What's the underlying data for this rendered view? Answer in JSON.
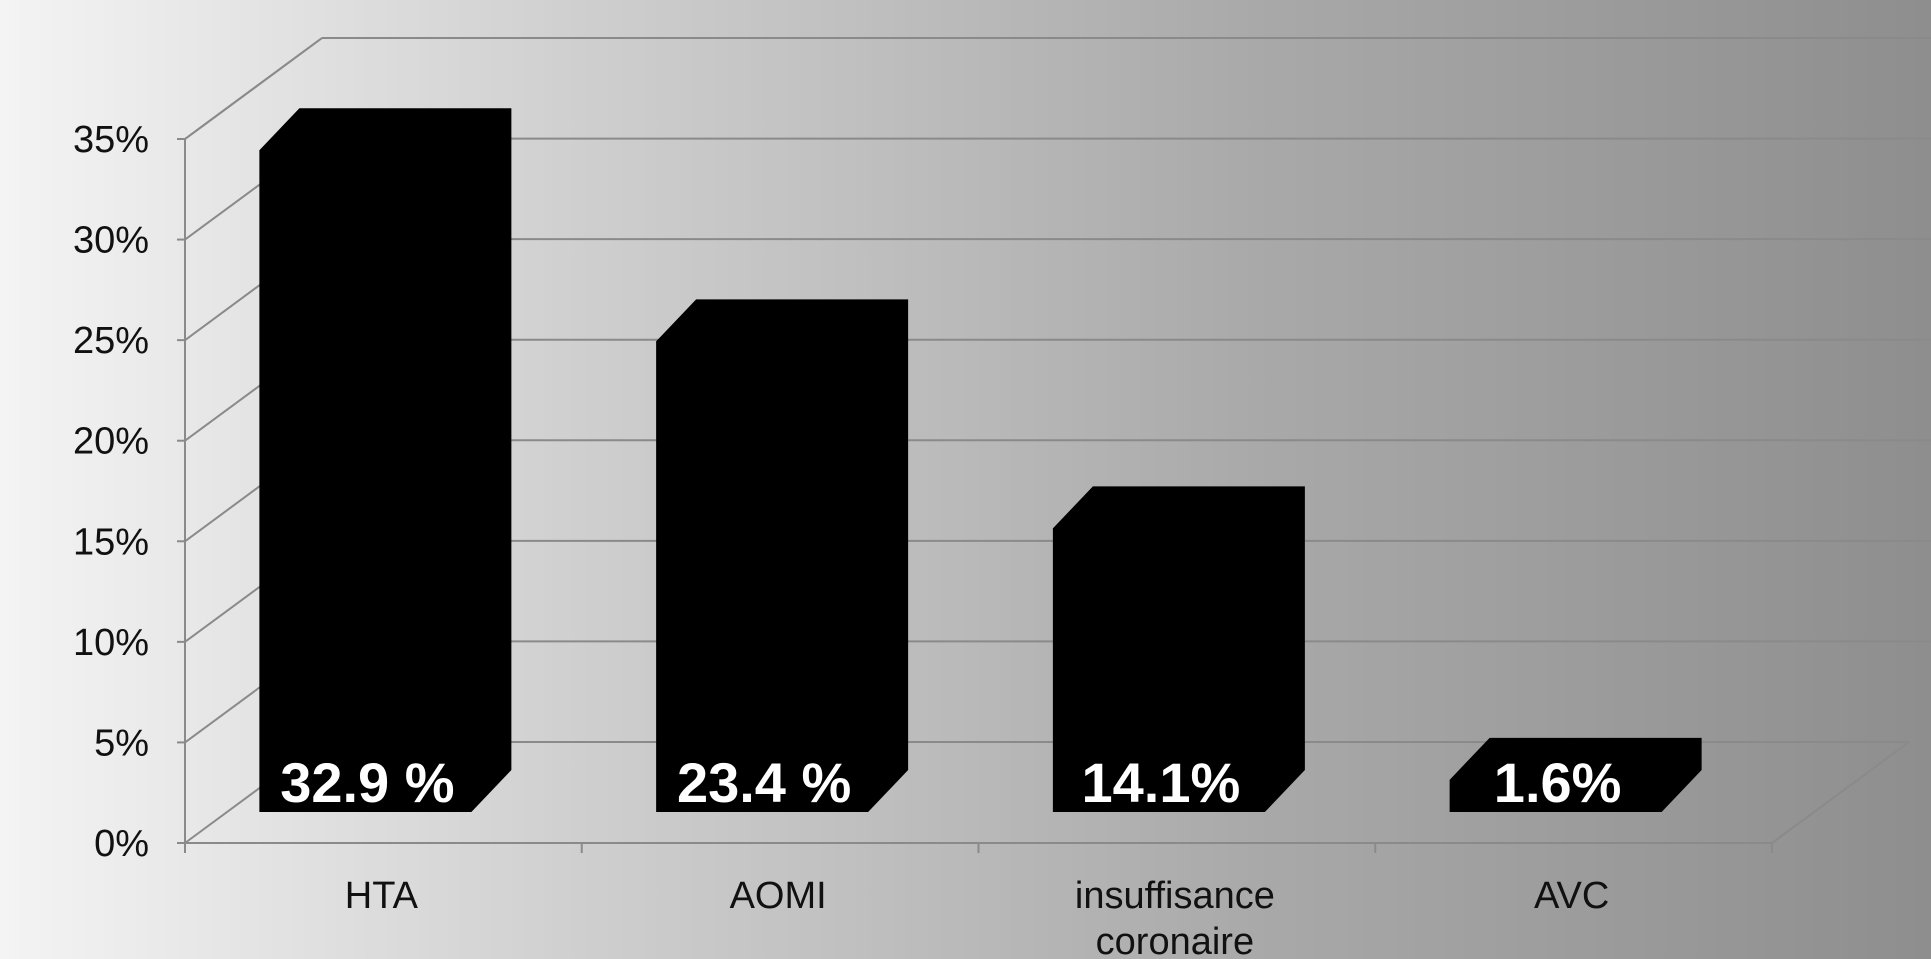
{
  "chart_data": {
    "type": "bar",
    "categories": [
      [
        "HTA"
      ],
      [
        "AOMI"
      ],
      [
        "insuffisance",
        "coronaire"
      ],
      [
        "AVC"
      ]
    ],
    "values": [
      32.9,
      23.4,
      14.1,
      1.6
    ],
    "data_labels": [
      "32.9 %",
      "23.4 %",
      "14.1%",
      "1.6%"
    ],
    "y_ticks": [
      "0%",
      "5%",
      "10%",
      "15%",
      "20%",
      "25%",
      "30%",
      "35%"
    ],
    "ylim": [
      0,
      35
    ],
    "grid": true,
    "bar_color": "#000000",
    "grid_color": "#8a8a8a",
    "data_label_color": "#ffffff"
  }
}
